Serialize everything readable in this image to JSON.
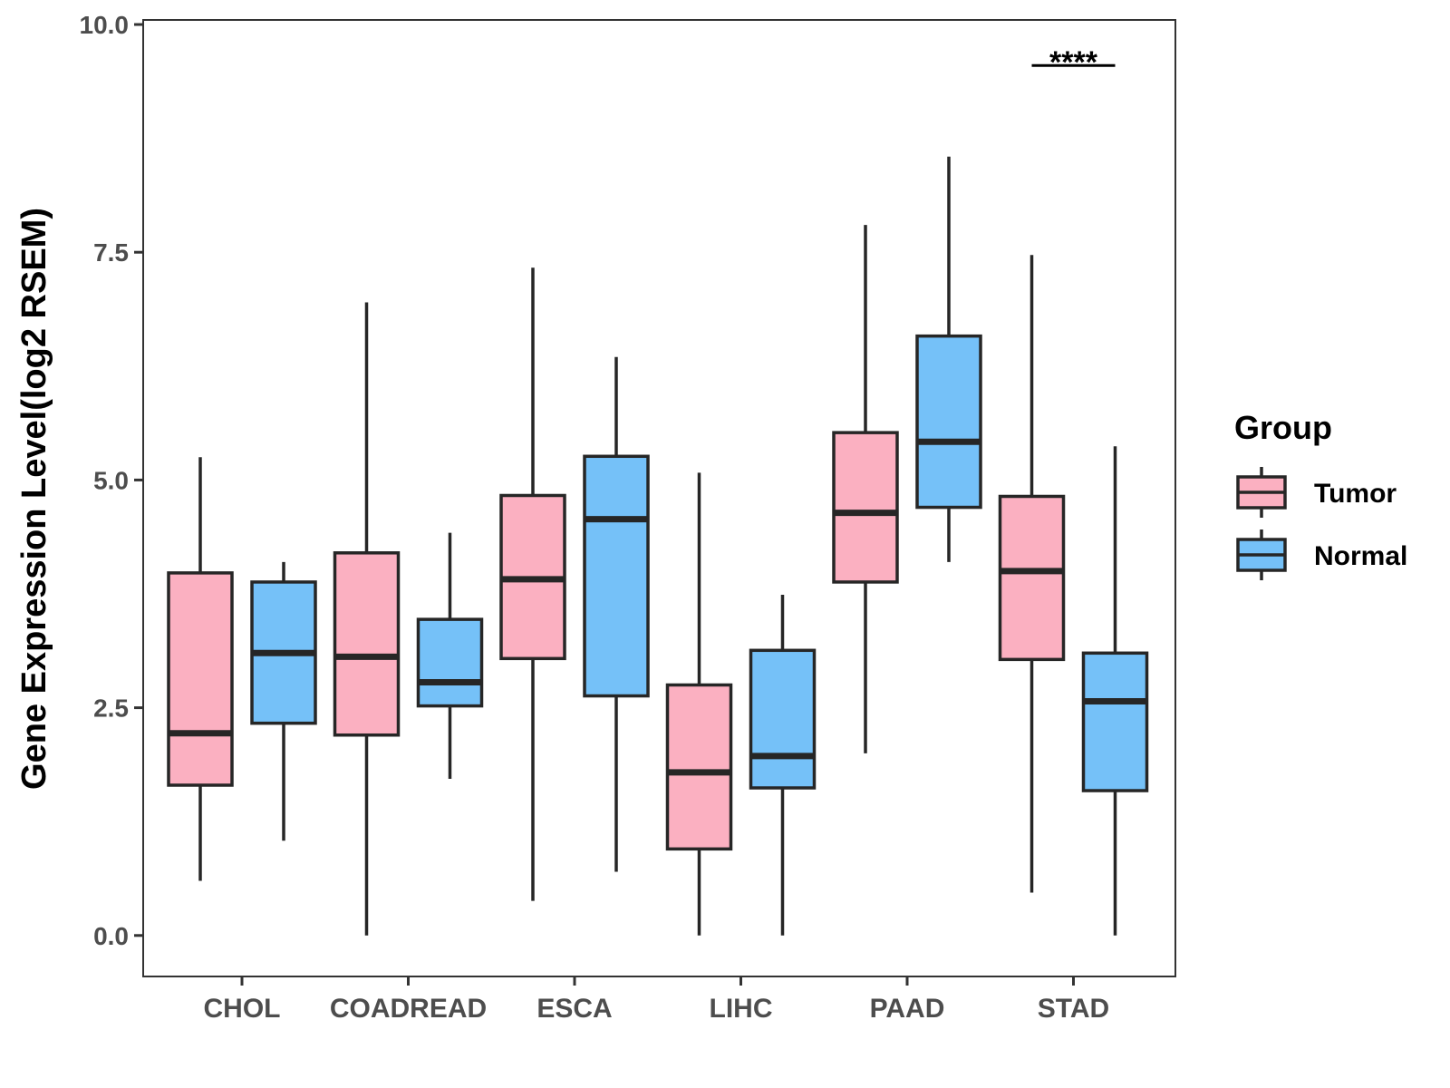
{
  "chart_data": {
    "type": "boxplot",
    "title": "",
    "xlabel": "",
    "ylabel": "Gene Expression Level(log2 RSEM)",
    "ylim": [
      -0.45,
      10.05
    ],
    "yticks": [
      0,
      2.5,
      5,
      7.5,
      10
    ],
    "ytick_labels": [
      "0.0",
      "2.5",
      "5.0",
      "7.5",
      "10.0"
    ],
    "grid": false,
    "categories": [
      "CHOL",
      "COADREAD",
      "ESCA",
      "LIHC",
      "PAAD",
      "STAD"
    ],
    "legend": {
      "title": "Group",
      "position": "right",
      "items": [
        {
          "label": "Tumor",
          "color": "#FBB0C1"
        },
        {
          "label": "Normal",
          "color": "#75C1F8"
        }
      ]
    },
    "series": [
      {
        "name": "Tumor",
        "color": "#FBB0C1",
        "boxes": [
          {
            "min": 0.6,
            "q1": 1.65,
            "median": 2.22,
            "q3": 3.98,
            "max": 5.25
          },
          {
            "min": 0.0,
            "q1": 2.2,
            "median": 3.06,
            "q3": 4.2,
            "max": 6.95
          },
          {
            "min": 0.38,
            "q1": 3.04,
            "median": 3.91,
            "q3": 4.83,
            "max": 7.33
          },
          {
            "min": 0.0,
            "q1": 0.95,
            "median": 1.79,
            "q3": 2.75,
            "max": 5.08
          },
          {
            "min": 2.0,
            "q1": 3.88,
            "median": 4.64,
            "q3": 5.52,
            "max": 7.8
          },
          {
            "min": 0.47,
            "q1": 3.03,
            "median": 4.0,
            "q3": 4.82,
            "max": 7.47
          }
        ]
      },
      {
        "name": "Normal",
        "color": "#75C1F8",
        "boxes": [
          {
            "min": 1.04,
            "q1": 2.33,
            "median": 3.1,
            "q3": 3.88,
            "max": 4.1
          },
          {
            "min": 1.72,
            "q1": 2.52,
            "median": 2.78,
            "q3": 3.47,
            "max": 4.42
          },
          {
            "min": 0.7,
            "q1": 2.63,
            "median": 4.57,
            "q3": 5.26,
            "max": 6.35
          },
          {
            "min": 0.0,
            "q1": 1.62,
            "median": 1.97,
            "q3": 3.13,
            "max": 3.74
          },
          {
            "min": 4.1,
            "q1": 4.7,
            "median": 5.42,
            "q3": 6.58,
            "max": 8.55
          },
          {
            "min": 0.0,
            "q1": 1.59,
            "median": 2.57,
            "q3": 3.1,
            "max": 5.37
          }
        ]
      }
    ],
    "annotations": [
      {
        "category": "STAD",
        "text": "****",
        "y": 9.55
      }
    ]
  },
  "colors": {
    "tumor": "#FBB0C1",
    "normal": "#75C1F8",
    "outline": "#262626",
    "axis_text": "#4d4d4d"
  }
}
